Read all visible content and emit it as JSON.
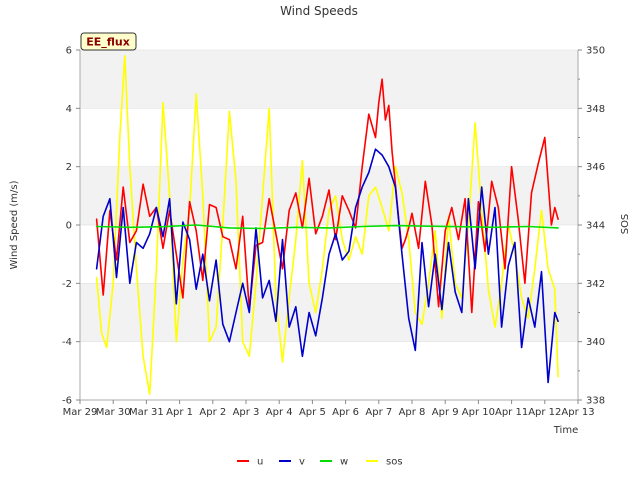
{
  "chart_data": {
    "type": "line",
    "title": "Wind Speeds",
    "badge": "EE_flux",
    "xlabel": "Time",
    "ylabel": "Wind Speed (m/s)",
    "y2label": "SOS",
    "ylim": [
      -6,
      6
    ],
    "y2lim": [
      338,
      350
    ],
    "xlim": [
      0,
      15
    ],
    "x_tick_labels": [
      "Mar 29",
      "Mar 30",
      "Mar 31",
      "Apr 1",
      "Apr 2",
      "Apr 3",
      "Apr 4",
      "Apr 5",
      "Apr 6",
      "Apr 7",
      "Apr 8",
      "Apr 9",
      "Apr 10",
      "Apr 11",
      "Apr 12",
      "Apr 13"
    ],
    "y_ticks": [
      -6,
      -4,
      -2,
      0,
      2,
      4,
      6
    ],
    "y2_ticks": [
      338,
      340,
      342,
      344,
      346,
      348,
      350
    ],
    "grid": "horizontal bands",
    "legend_position": "bottom-center",
    "series": [
      {
        "name": "u",
        "color": "#ff0000",
        "axis": "left",
        "x": [
          0.5,
          0.7,
          0.9,
          1.1,
          1.3,
          1.5,
          1.7,
          1.9,
          2.1,
          2.3,
          2.5,
          2.7,
          2.9,
          3.1,
          3.3,
          3.5,
          3.7,
          3.9,
          4.1,
          4.3,
          4.5,
          4.7,
          4.9,
          5.1,
          5.3,
          5.5,
          5.7,
          5.9,
          6.1,
          6.3,
          6.5,
          6.7,
          6.9,
          7.1,
          7.3,
          7.5,
          7.7,
          7.9,
          8.1,
          8.3,
          8.5,
          8.7,
          8.9,
          9.0,
          9.1,
          9.2,
          9.3,
          9.4,
          9.5,
          9.6,
          9.7,
          9.8,
          9.9,
          10.0,
          10.2,
          10.4,
          10.6,
          10.8,
          11.0,
          11.2,
          11.4,
          11.6,
          11.8,
          12.0,
          12.2,
          12.4,
          12.6,
          12.8,
          13.0,
          13.2,
          13.4,
          13.6,
          13.8,
          14.0,
          14.2,
          14.3,
          14.4
        ],
        "values": [
          0.2,
          -2.4,
          0.5,
          -1.2,
          1.3,
          -0.6,
          -0.2,
          1.4,
          0.3,
          0.6,
          -0.8,
          0.5,
          -1.0,
          -2.5,
          0.8,
          -0.2,
          -1.9,
          0.7,
          0.6,
          -0.4,
          -0.5,
          -1.5,
          0.3,
          -2.9,
          -0.7,
          -0.6,
          0.9,
          -0.3,
          -1.5,
          0.5,
          1.1,
          -0.1,
          1.6,
          -0.3,
          0.3,
          1.2,
          -0.5,
          1.0,
          0.5,
          -0.1,
          2.0,
          3.8,
          3.0,
          4.2,
          5.0,
          3.6,
          4.1,
          2.5,
          1.4,
          0.2,
          -0.8,
          -0.5,
          -0.1,
          0.4,
          -0.8,
          1.5,
          0.0,
          -2.8,
          -0.2,
          0.6,
          -0.5,
          0.9,
          -3.0,
          0.8,
          -0.9,
          1.5,
          0.6,
          -1.5,
          2.0,
          0.2,
          -2.0,
          1.1,
          2.1,
          3.0,
          0.0,
          0.6,
          0.2
        ]
      },
      {
        "name": "v",
        "color": "#0000cc",
        "axis": "left",
        "x": [
          0.5,
          0.7,
          0.9,
          1.1,
          1.3,
          1.5,
          1.7,
          1.9,
          2.1,
          2.3,
          2.5,
          2.7,
          2.9,
          3.1,
          3.3,
          3.5,
          3.7,
          3.9,
          4.1,
          4.3,
          4.5,
          4.7,
          4.9,
          5.1,
          5.3,
          5.5,
          5.7,
          5.9,
          6.1,
          6.3,
          6.5,
          6.7,
          6.9,
          7.1,
          7.3,
          7.5,
          7.7,
          7.9,
          8.1,
          8.3,
          8.5,
          8.7,
          8.9,
          9.1,
          9.3,
          9.5,
          9.7,
          9.9,
          10.1,
          10.3,
          10.5,
          10.7,
          10.9,
          11.1,
          11.3,
          11.5,
          11.7,
          11.9,
          12.1,
          12.3,
          12.5,
          12.7,
          12.9,
          13.1,
          13.3,
          13.5,
          13.7,
          13.9,
          14.1,
          14.3,
          14.4
        ],
        "values": [
          -1.5,
          0.3,
          0.9,
          -1.8,
          0.6,
          -2.0,
          -0.6,
          -0.8,
          -0.3,
          0.6,
          -0.4,
          0.9,
          -2.7,
          0.1,
          -0.5,
          -2.2,
          -1.0,
          -2.6,
          -1.2,
          -3.4,
          -4.0,
          -3.0,
          -2.0,
          -3.0,
          -0.1,
          -2.5,
          -1.9,
          -3.3,
          -0.5,
          -3.5,
          -2.8,
          -4.5,
          -3.0,
          -3.8,
          -2.5,
          -1.0,
          -0.3,
          -1.2,
          -0.9,
          0.6,
          1.3,
          1.8,
          2.6,
          2.4,
          2.0,
          1.3,
          -1.0,
          -3.2,
          -4.3,
          -0.6,
          -2.8,
          -1.0,
          -2.9,
          -0.6,
          -2.3,
          -3.0,
          0.9,
          -1.5,
          1.3,
          -1.0,
          0.6,
          -3.5,
          -1.4,
          -0.6,
          -4.2,
          -2.5,
          -3.5,
          -1.6,
          -5.4,
          -3.0,
          -3.3
        ]
      },
      {
        "name": "w",
        "color": "#00dd00",
        "axis": "left",
        "x": [
          0.5,
          1.5,
          2.5,
          3.5,
          4.5,
          5.5,
          6.5,
          7.5,
          8.5,
          9.5,
          10.5,
          11.5,
          12.5,
          13.5,
          14.4
        ],
        "values": [
          -0.05,
          -0.08,
          -0.06,
          0.0,
          -0.1,
          -0.12,
          -0.08,
          -0.1,
          -0.05,
          -0.02,
          -0.04,
          -0.06,
          -0.08,
          -0.05,
          -0.1
        ]
      },
      {
        "name": "sos",
        "color": "#ffff00",
        "axis": "right",
        "x": [
          0.5,
          0.65,
          0.8,
          1.0,
          1.2,
          1.35,
          1.5,
          1.7,
          1.9,
          2.1,
          2.3,
          2.5,
          2.7,
          2.9,
          3.1,
          3.3,
          3.5,
          3.7,
          3.9,
          4.1,
          4.3,
          4.5,
          4.7,
          4.9,
          5.1,
          5.3,
          5.5,
          5.7,
          5.9,
          6.1,
          6.3,
          6.5,
          6.7,
          6.9,
          7.1,
          7.3,
          7.5,
          7.7,
          7.9,
          8.1,
          8.3,
          8.5,
          8.7,
          8.9,
          9.1,
          9.3,
          9.5,
          9.7,
          9.9,
          10.1,
          10.3,
          10.5,
          10.7,
          10.9,
          11.1,
          11.3,
          11.5,
          11.7,
          11.9,
          12.1,
          12.3,
          12.5,
          12.7,
          12.9,
          13.1,
          13.3,
          13.5,
          13.7,
          13.9,
          14.1,
          14.3,
          14.4
        ],
        "values": [
          342.2,
          340.3,
          339.8,
          342.0,
          347.0,
          349.8,
          346.0,
          342.5,
          339.5,
          338.2,
          342.5,
          348.2,
          345.0,
          340.0,
          342.8,
          344.5,
          348.5,
          345.0,
          340.0,
          340.5,
          344.0,
          347.9,
          345.5,
          340.0,
          339.5,
          342.0,
          345.0,
          348.0,
          341.5,
          339.3,
          341.5,
          343.5,
          346.2,
          342.0,
          341.0,
          342.5,
          344.5,
          345.0,
          343.5,
          342.8,
          343.6,
          343.0,
          345.0,
          345.3,
          344.6,
          343.8,
          346.0,
          345.1,
          343.5,
          341.0,
          340.6,
          342.0,
          343.8,
          340.8,
          344.3,
          342.0,
          341.5,
          344.0,
          347.5,
          344.5,
          341.8,
          340.5,
          342.0,
          344.0,
          343.0,
          341.5,
          340.8,
          342.5,
          344.5,
          342.5,
          341.8,
          338.8
        ]
      }
    ]
  }
}
